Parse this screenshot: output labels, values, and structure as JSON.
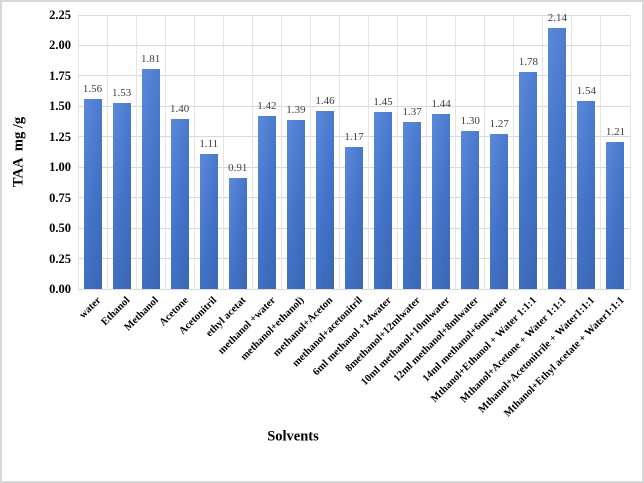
{
  "frame": {
    "background": "#FFFFFF",
    "border_color": "#D8D8D8"
  },
  "chart_data": {
    "type": "bar",
    "title": "",
    "xlabel": "Solvents",
    "ylabel": "TAA  mg /g",
    "categories": [
      "water",
      "Ethanol",
      "Methanol",
      "Acetone",
      "Acetonitril",
      "ethyl acetat",
      "methanol +water",
      "methanol+ethanol)",
      "methanol+Aceton",
      "methanol+acetonitril",
      "6ml methanol +14water",
      "8methanol+12mlwater",
      "10ml methanol+10mlwater",
      "12ml methanol+8mlwater",
      "14ml methanol+6mlwater",
      "Mthanol+Ethanol + Water 1:1:1",
      "Mthanol+Acetone + Water 1:1:1",
      "Mthanol+Acetonitrile + Water1:1:1",
      "Mthanol+Ethyl acetate + Water1:1:1"
    ],
    "values": [
      1.56,
      1.53,
      1.81,
      1.4,
      1.11,
      0.91,
      1.42,
      1.39,
      1.46,
      1.17,
      1.45,
      1.37,
      1.44,
      1.3,
      1.27,
      1.78,
      2.14,
      1.54,
      1.21
    ],
    "value_labels": [
      "1.56",
      "1.53",
      "1.81",
      "1.40",
      "1.11",
      "0.91",
      "1.42",
      "1.39",
      "1.46",
      "1.17",
      "1.45",
      "1.37",
      "1.44",
      "1.30",
      "1.27",
      "1.78",
      "2.14",
      "1.54",
      "1.21"
    ],
    "ylim": [
      0,
      2.25
    ],
    "ytick_interval": 0.25,
    "yticks": [
      "0.00",
      "0.25",
      "0.50",
      "0.75",
      "1.00",
      "1.25",
      "1.50",
      "1.75",
      "2.00",
      "2.25"
    ],
    "grid": {
      "horizontal": true,
      "vertical": true
    },
    "legend_position": "none",
    "bar_color": "#4472C4",
    "bar_gradient": [
      "#5C89DA",
      "#4273C7",
      "#3B66B2"
    ],
    "gridline_color": "#D9D9D9",
    "text_color": "#000000",
    "value_label_color": "#3D3D3D"
  }
}
